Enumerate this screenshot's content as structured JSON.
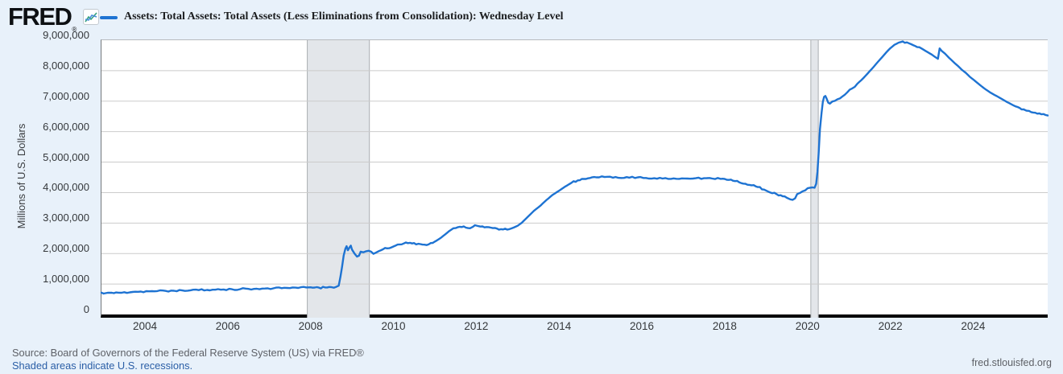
{
  "header": {
    "logo": "FRED",
    "registered_mark": "®",
    "title": "Assets: Total Assets: Total Assets (Less Eliminations from Consolidation): Wednesday Level"
  },
  "y_axis": {
    "label": "Millions of U.S. Dollars",
    "tick_labels": [
      "9,000,000",
      "8,000,000",
      "7,000,000",
      "6,000,000",
      "5,000,000",
      "4,000,000",
      "3,000,000",
      "2,000,000",
      "1,000,000",
      "0"
    ]
  },
  "x_axis": {
    "tick_labels": [
      "2004",
      "2006",
      "2008",
      "2010",
      "2012",
      "2014",
      "2016",
      "2018",
      "2020",
      "2022",
      "2024"
    ]
  },
  "footer": {
    "source": "Source: Board of Governors of the Federal Reserve System (US) via FRED®",
    "recession_note": "Shaded areas indicate U.S. recessions.",
    "website": "fred.stlouisfed.org"
  },
  "colors": {
    "background": "#e8f1fa",
    "plot_background": "#ffffff",
    "series": "#1e73d2",
    "gridline": "#cbcbcb",
    "recession_fill": "#e3e6ea",
    "recession_edge": "#aaaeb2",
    "axis_line": "#000000",
    "link": "#2a5ea6",
    "logo_icon_blue": "#4a90d9",
    "logo_icon_green": "#35a17c"
  },
  "chart_data": {
    "type": "line",
    "title": "Assets: Total Assets: Total Assets (Less Eliminations from Consolidation): Wednesday Level",
    "ylabel": "Millions of U.S. Dollars",
    "units": "Millions of U.S. Dollars",
    "x_range": [
      2002.95,
      2025.8
    ],
    "y_range": [
      0,
      9000000
    ],
    "grid": "horizontal",
    "legend_position": "top-left",
    "recession_bands": [
      {
        "start": 2007.92,
        "end": 2009.42
      },
      {
        "start": 2020.08,
        "end": 2020.26
      }
    ],
    "series": [
      {
        "name": "Assets: Total Assets: Total Assets (Less Eliminations from Consolidation): Wednesday Level",
        "color": "#1e73d2",
        "points": [
          [
            2002.95,
            715000
          ],
          [
            2003.05,
            700000
          ],
          [
            2003.15,
            712000
          ],
          [
            2003.3,
            722000
          ],
          [
            2003.5,
            730000
          ],
          [
            2003.7,
            740000
          ],
          [
            2003.9,
            752000
          ],
          [
            2004.1,
            760000
          ],
          [
            2004.3,
            768000
          ],
          [
            2004.5,
            772000
          ],
          [
            2004.7,
            778000
          ],
          [
            2004.9,
            788000
          ],
          [
            2005.1,
            795000
          ],
          [
            2005.3,
            800000
          ],
          [
            2005.5,
            806000
          ],
          [
            2005.7,
            812000
          ],
          [
            2005.9,
            820000
          ],
          [
            2006.1,
            828000
          ],
          [
            2006.3,
            832000
          ],
          [
            2006.5,
            838000
          ],
          [
            2006.7,
            844000
          ],
          [
            2006.9,
            852000
          ],
          [
            2007.1,
            858000
          ],
          [
            2007.3,
            862000
          ],
          [
            2007.5,
            866000
          ],
          [
            2007.7,
            872000
          ],
          [
            2007.9,
            888000
          ],
          [
            2008.05,
            878000
          ],
          [
            2008.2,
            882000
          ],
          [
            2008.35,
            888000
          ],
          [
            2008.5,
            898000
          ],
          [
            2008.62,
            908000
          ],
          [
            2008.68,
            944000
          ],
          [
            2008.72,
            1230000
          ],
          [
            2008.76,
            1570000
          ],
          [
            2008.8,
            1940000
          ],
          [
            2008.84,
            2160000
          ],
          [
            2008.87,
            2240000
          ],
          [
            2008.9,
            2110000
          ],
          [
            2008.94,
            2200000
          ],
          [
            2008.97,
            2260000
          ],
          [
            2009.0,
            2130000
          ],
          [
            2009.06,
            2000000
          ],
          [
            2009.12,
            1900000
          ],
          [
            2009.17,
            1930000
          ],
          [
            2009.21,
            2060000
          ],
          [
            2009.27,
            2040000
          ],
          [
            2009.33,
            2070000
          ],
          [
            2009.4,
            2090000
          ],
          [
            2009.46,
            2060000
          ],
          [
            2009.52,
            1990000
          ],
          [
            2009.58,
            2030000
          ],
          [
            2009.65,
            2080000
          ],
          [
            2009.75,
            2140000
          ],
          [
            2009.85,
            2170000
          ],
          [
            2009.95,
            2200000
          ],
          [
            2010.05,
            2260000
          ],
          [
            2010.15,
            2300000
          ],
          [
            2010.25,
            2330000
          ],
          [
            2010.35,
            2340000
          ],
          [
            2010.45,
            2330000
          ],
          [
            2010.55,
            2300000
          ],
          [
            2010.65,
            2310000
          ],
          [
            2010.75,
            2290000
          ],
          [
            2010.85,
            2300000
          ],
          [
            2010.95,
            2350000
          ],
          [
            2011.05,
            2430000
          ],
          [
            2011.15,
            2520000
          ],
          [
            2011.25,
            2630000
          ],
          [
            2011.35,
            2740000
          ],
          [
            2011.45,
            2830000
          ],
          [
            2011.55,
            2860000
          ],
          [
            2011.65,
            2870000
          ],
          [
            2011.75,
            2850000
          ],
          [
            2011.85,
            2830000
          ],
          [
            2011.92,
            2880000
          ],
          [
            2011.97,
            2930000
          ],
          [
            2012.05,
            2900000
          ],
          [
            2012.15,
            2890000
          ],
          [
            2012.25,
            2870000
          ],
          [
            2012.35,
            2850000
          ],
          [
            2012.5,
            2820000
          ],
          [
            2012.65,
            2790000
          ],
          [
            2012.8,
            2800000
          ],
          [
            2012.9,
            2850000
          ],
          [
            2013.0,
            2910000
          ],
          [
            2013.1,
            3010000
          ],
          [
            2013.25,
            3210000
          ],
          [
            2013.4,
            3410000
          ],
          [
            2013.55,
            3570000
          ],
          [
            2013.7,
            3760000
          ],
          [
            2013.85,
            3930000
          ],
          [
            2014.0,
            4060000
          ],
          [
            2014.15,
            4200000
          ],
          [
            2014.3,
            4320000
          ],
          [
            2014.45,
            4400000
          ],
          [
            2014.6,
            4450000
          ],
          [
            2014.75,
            4480000
          ],
          [
            2014.9,
            4500000
          ],
          [
            2015.1,
            4510000
          ],
          [
            2015.3,
            4490000
          ],
          [
            2015.5,
            4480000
          ],
          [
            2015.7,
            4490000
          ],
          [
            2015.9,
            4500000
          ],
          [
            2016.1,
            4480000
          ],
          [
            2016.3,
            4470000
          ],
          [
            2016.5,
            4460000
          ],
          [
            2016.7,
            4450000
          ],
          [
            2016.9,
            4450000
          ],
          [
            2017.1,
            4460000
          ],
          [
            2017.3,
            4470000
          ],
          [
            2017.5,
            4470000
          ],
          [
            2017.7,
            4460000
          ],
          [
            2017.9,
            4450000
          ],
          [
            2018.05,
            4420000
          ],
          [
            2018.2,
            4390000
          ],
          [
            2018.35,
            4340000
          ],
          [
            2018.5,
            4290000
          ],
          [
            2018.65,
            4240000
          ],
          [
            2018.8,
            4180000
          ],
          [
            2018.95,
            4100000
          ],
          [
            2019.1,
            4000000
          ],
          [
            2019.25,
            3950000
          ],
          [
            2019.4,
            3880000
          ],
          [
            2019.5,
            3830000
          ],
          [
            2019.58,
            3780000
          ],
          [
            2019.64,
            3760000
          ],
          [
            2019.7,
            3810000
          ],
          [
            2019.75,
            3950000
          ],
          [
            2019.82,
            3990000
          ],
          [
            2019.88,
            4040000
          ],
          [
            2019.94,
            4070000
          ],
          [
            2020.0,
            4140000
          ],
          [
            2020.06,
            4160000
          ],
          [
            2020.12,
            4170000
          ],
          [
            2020.17,
            4160000
          ],
          [
            2020.21,
            4290000
          ],
          [
            2020.24,
            4680000
          ],
          [
            2020.27,
            5300000
          ],
          [
            2020.3,
            6080000
          ],
          [
            2020.34,
            6620000
          ],
          [
            2020.37,
            6980000
          ],
          [
            2020.4,
            7140000
          ],
          [
            2020.43,
            7170000
          ],
          [
            2020.46,
            7090000
          ],
          [
            2020.5,
            6950000
          ],
          [
            2020.54,
            6920000
          ],
          [
            2020.6,
            6990000
          ],
          [
            2020.66,
            7010000
          ],
          [
            2020.72,
            7060000
          ],
          [
            2020.78,
            7090000
          ],
          [
            2020.84,
            7150000
          ],
          [
            2020.9,
            7210000
          ],
          [
            2020.96,
            7290000
          ],
          [
            2021.02,
            7380000
          ],
          [
            2021.08,
            7420000
          ],
          [
            2021.14,
            7470000
          ],
          [
            2021.2,
            7570000
          ],
          [
            2021.3,
            7690000
          ],
          [
            2021.4,
            7830000
          ],
          [
            2021.5,
            7980000
          ],
          [
            2021.6,
            8130000
          ],
          [
            2021.7,
            8290000
          ],
          [
            2021.8,
            8440000
          ],
          [
            2021.9,
            8600000
          ],
          [
            2022.0,
            8740000
          ],
          [
            2022.1,
            8850000
          ],
          [
            2022.2,
            8920000
          ],
          [
            2022.3,
            8960000
          ],
          [
            2022.4,
            8930000
          ],
          [
            2022.5,
            8870000
          ],
          [
            2022.6,
            8810000
          ],
          [
            2022.7,
            8770000
          ],
          [
            2022.8,
            8690000
          ],
          [
            2022.9,
            8610000
          ],
          [
            2023.0,
            8530000
          ],
          [
            2023.08,
            8450000
          ],
          [
            2023.15,
            8390000
          ],
          [
            2023.19,
            8730000
          ],
          [
            2023.24,
            8650000
          ],
          [
            2023.32,
            8560000
          ],
          [
            2023.42,
            8420000
          ],
          [
            2023.52,
            8290000
          ],
          [
            2023.62,
            8170000
          ],
          [
            2023.72,
            8040000
          ],
          [
            2023.82,
            7930000
          ],
          [
            2023.92,
            7800000
          ],
          [
            2024.02,
            7690000
          ],
          [
            2024.12,
            7580000
          ],
          [
            2024.22,
            7470000
          ],
          [
            2024.32,
            7370000
          ],
          [
            2024.42,
            7280000
          ],
          [
            2024.52,
            7200000
          ],
          [
            2024.62,
            7130000
          ],
          [
            2024.72,
            7050000
          ],
          [
            2024.82,
            6970000
          ],
          [
            2024.92,
            6900000
          ],
          [
            2025.02,
            6830000
          ],
          [
            2025.12,
            6780000
          ],
          [
            2025.22,
            6730000
          ],
          [
            2025.35,
            6680000
          ],
          [
            2025.5,
            6620000
          ],
          [
            2025.65,
            6570000
          ],
          [
            2025.8,
            6530000
          ]
        ]
      }
    ]
  }
}
